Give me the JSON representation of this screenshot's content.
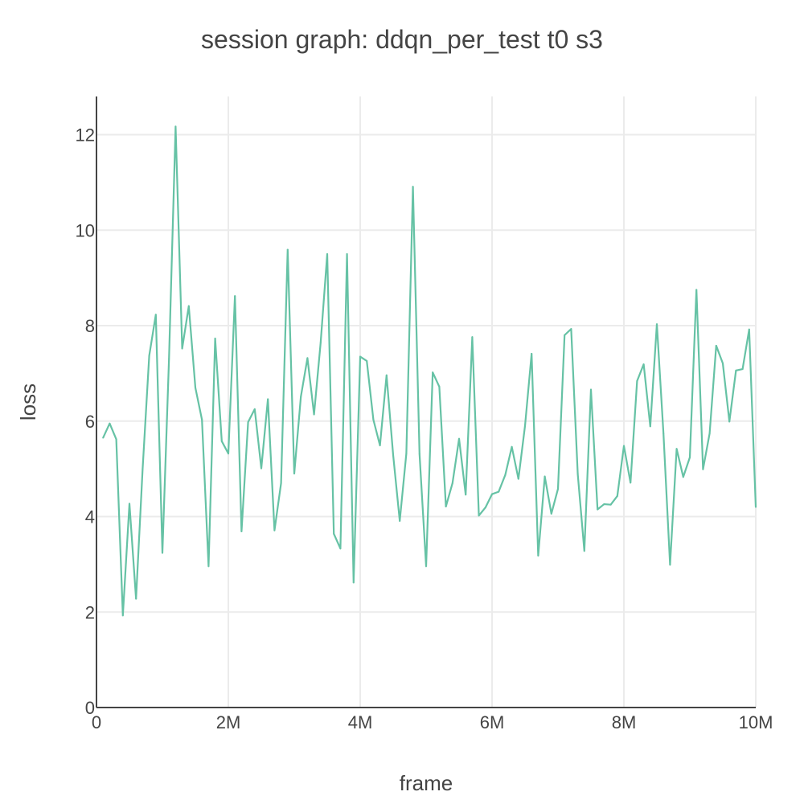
{
  "chart_data": {
    "type": "line",
    "title": "session graph: ddqn_per_test t0 s3",
    "xlabel": "frame",
    "ylabel": "loss",
    "xlim": [
      0,
      10000000
    ],
    "ylim": [
      0,
      12.8
    ],
    "x_ticks": [
      {
        "value": 0,
        "label": "0"
      },
      {
        "value": 2000000,
        "label": "2M"
      },
      {
        "value": 4000000,
        "label": "4M"
      },
      {
        "value": 6000000,
        "label": "6M"
      },
      {
        "value": 8000000,
        "label": "8M"
      },
      {
        "value": 10000000,
        "label": "10M"
      }
    ],
    "y_ticks": [
      {
        "value": 0,
        "label": "0"
      },
      {
        "value": 2,
        "label": "2"
      },
      {
        "value": 4,
        "label": "4"
      },
      {
        "value": 6,
        "label": "6"
      },
      {
        "value": 8,
        "label": "8"
      },
      {
        "value": 10,
        "label": "10"
      },
      {
        "value": 12,
        "label": "12"
      }
    ],
    "grid": true,
    "legend": "none",
    "series": [
      {
        "color": "#66c2a5",
        "x": [
          100000,
          200000,
          300000,
          400000,
          500000,
          600000,
          700000,
          800000,
          900000,
          1000000,
          1100000,
          1200000,
          1300000,
          1400000,
          1500000,
          1600000,
          1700000,
          1800000,
          1900000,
          2000000,
          2100000,
          2200000,
          2300000,
          2400000,
          2500000,
          2600000,
          2700000,
          2800000,
          2900000,
          3000000,
          3100000,
          3200000,
          3300000,
          3400000,
          3500000,
          3600000,
          3700000,
          3800000,
          3900000,
          4000000,
          4100000,
          4200000,
          4300000,
          4400000,
          4500000,
          4600000,
          4700000,
          4800000,
          4900000,
          5000000,
          5100000,
          5200000,
          5300000,
          5400000,
          5500000,
          5600000,
          5700000,
          5800000,
          5900000,
          6000000,
          6100000,
          6200000,
          6300000,
          6400000,
          6500000,
          6600000,
          6700000,
          6800000,
          6900000,
          7000000,
          7100000,
          7200000,
          7300000,
          7400000,
          7500000,
          7600000,
          7700000,
          7800000,
          7900000,
          8000000,
          8100000,
          8200000,
          8300000,
          8400000,
          8500000,
          8600000,
          8700000,
          8800000,
          8900000,
          9000000,
          9100000,
          9200000,
          9300000,
          9400000,
          9500000,
          9600000,
          9700000,
          9800000,
          9900000,
          10000000
        ],
        "y": [
          5.65,
          5.95,
          5.62,
          1.93,
          4.27,
          2.28,
          5.0,
          7.37,
          8.23,
          3.24,
          7.3,
          12.17,
          7.52,
          8.41,
          6.7,
          6.03,
          2.96,
          7.73,
          5.58,
          5.32,
          8.62,
          3.69,
          5.98,
          6.25,
          5.01,
          6.46,
          3.71,
          4.7,
          9.59,
          4.9,
          6.51,
          7.32,
          6.14,
          7.64,
          9.5,
          3.64,
          3.33,
          9.5,
          2.62,
          7.35,
          7.26,
          6.03,
          5.49,
          6.96,
          5.29,
          3.91,
          5.32,
          10.91,
          5.31,
          2.96,
          7.02,
          6.72,
          4.21,
          4.7,
          5.63,
          4.46,
          7.76,
          4.02,
          4.19,
          4.47,
          4.52,
          4.87,
          5.46,
          4.79,
          5.9,
          7.41,
          3.18,
          4.84,
          4.06,
          4.58,
          7.8,
          7.93,
          4.89,
          3.28,
          6.66,
          4.15,
          4.26,
          4.25,
          4.43,
          5.48,
          4.71,
          6.84,
          7.19,
          5.89,
          8.03,
          5.74,
          2.99,
          5.42,
          4.83,
          5.24,
          8.75,
          4.99,
          5.74,
          7.58,
          7.21,
          5.99,
          7.06,
          7.09,
          7.92,
          4.2
        ]
      }
    ]
  }
}
